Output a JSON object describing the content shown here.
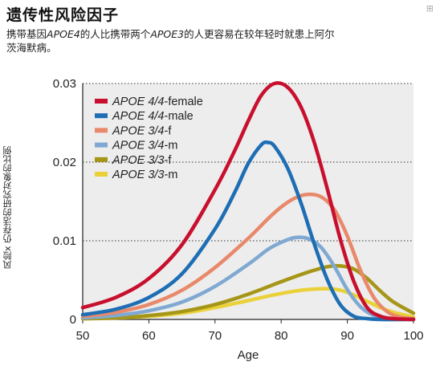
{
  "header": {
    "title": "遗传性风险因子",
    "subtitle_part1": "携带基因",
    "subtitle_gene1": "APOE4",
    "subtitle_part2": "的人比携带两个",
    "subtitle_gene2": "APOE3",
    "subtitle_part3": "的人更容易在较年轻时就患上阿尔茨海默病。",
    "corner_mark": "⊞"
  },
  "chart_data": {
    "type": "line",
    "title": "",
    "xlabel": "Age",
    "ylabel": "风险x 仍存活的研究对象的比例",
    "xlim": [
      50,
      100
    ],
    "ylim": [
      0,
      0.03
    ],
    "xticks": [
      "50",
      "60",
      "70",
      "80",
      "90",
      "100"
    ],
    "yticks": [
      "0",
      "0.01",
      "0.02",
      "0.03"
    ],
    "grid": "horizontal-dotted",
    "legend_position": "top-left",
    "series": [
      {
        "name": "APOE 4/4-female",
        "color": "#c8102e",
        "x": [
          50,
          55,
          60,
          65,
          70,
          73,
          75,
          77,
          79,
          81,
          83,
          85,
          87,
          89,
          91,
          93,
          95,
          97,
          100
        ],
        "y": [
          0.0015,
          0.0028,
          0.0052,
          0.0095,
          0.0165,
          0.0215,
          0.0252,
          0.0285,
          0.03,
          0.0295,
          0.027,
          0.0225,
          0.0165,
          0.01,
          0.0048,
          0.0015,
          0.0004,
          0.0001,
          0
        ]
      },
      {
        "name": "APOE 4/4-male",
        "color": "#1e6eb4",
        "x": [
          50,
          55,
          60,
          65,
          70,
          73,
          75,
          77,
          78,
          79,
          81,
          83,
          85,
          87,
          89,
          91,
          93,
          95,
          100
        ],
        "y": [
          0.0006,
          0.0013,
          0.0028,
          0.0058,
          0.0115,
          0.0162,
          0.0198,
          0.0222,
          0.0225,
          0.022,
          0.0192,
          0.0148,
          0.0096,
          0.005,
          0.0018,
          0.0004,
          0.0001,
          0,
          0
        ]
      },
      {
        "name": "APOE 3/4-f",
        "color": "#e8896a",
        "x": [
          50,
          55,
          60,
          65,
          70,
          75,
          78,
          80,
          82,
          84,
          86,
          88,
          90,
          92,
          94,
          96,
          98,
          100
        ],
        "y": [
          0.0004,
          0.0009,
          0.0019,
          0.0037,
          0.0066,
          0.0103,
          0.0128,
          0.0143,
          0.0154,
          0.0159,
          0.0156,
          0.014,
          0.0106,
          0.0062,
          0.0028,
          0.001,
          0.0003,
          0.0001
        ]
      },
      {
        "name": "APOE 3/4-m",
        "color": "#7fa9d2",
        "x": [
          50,
          55,
          60,
          65,
          70,
          75,
          78,
          80,
          82,
          84,
          86,
          88,
          90,
          92,
          94,
          96,
          100
        ],
        "y": [
          0.0002,
          0.0005,
          0.0011,
          0.0022,
          0.0042,
          0.007,
          0.0089,
          0.0098,
          0.0104,
          0.0103,
          0.0092,
          0.0068,
          0.0038,
          0.0016,
          0.0005,
          0.0001,
          0
        ]
      },
      {
        "name": "APOE 3/3-f",
        "color": "#a69618",
        "x": [
          50,
          55,
          60,
          65,
          70,
          75,
          80,
          84,
          87,
          89,
          91,
          93,
          95,
          97,
          100
        ],
        "y": [
          0.0001,
          0.0002,
          0.0005,
          0.001,
          0.0019,
          0.0032,
          0.0048,
          0.006,
          0.0067,
          0.0068,
          0.0064,
          0.0052,
          0.0036,
          0.0022,
          0.0008
        ]
      },
      {
        "name": "APOE 3/3-m",
        "color": "#ead13a",
        "x": [
          50,
          55,
          60,
          65,
          70,
          75,
          80,
          84,
          87,
          89,
          91,
          93,
          95,
          97,
          100
        ],
        "y": [
          0.0001,
          0.0002,
          0.0004,
          0.0008,
          0.0015,
          0.0024,
          0.0033,
          0.0038,
          0.0039,
          0.0037,
          0.0031,
          0.0023,
          0.0015,
          0.0009,
          0.0003
        ]
      }
    ]
  }
}
